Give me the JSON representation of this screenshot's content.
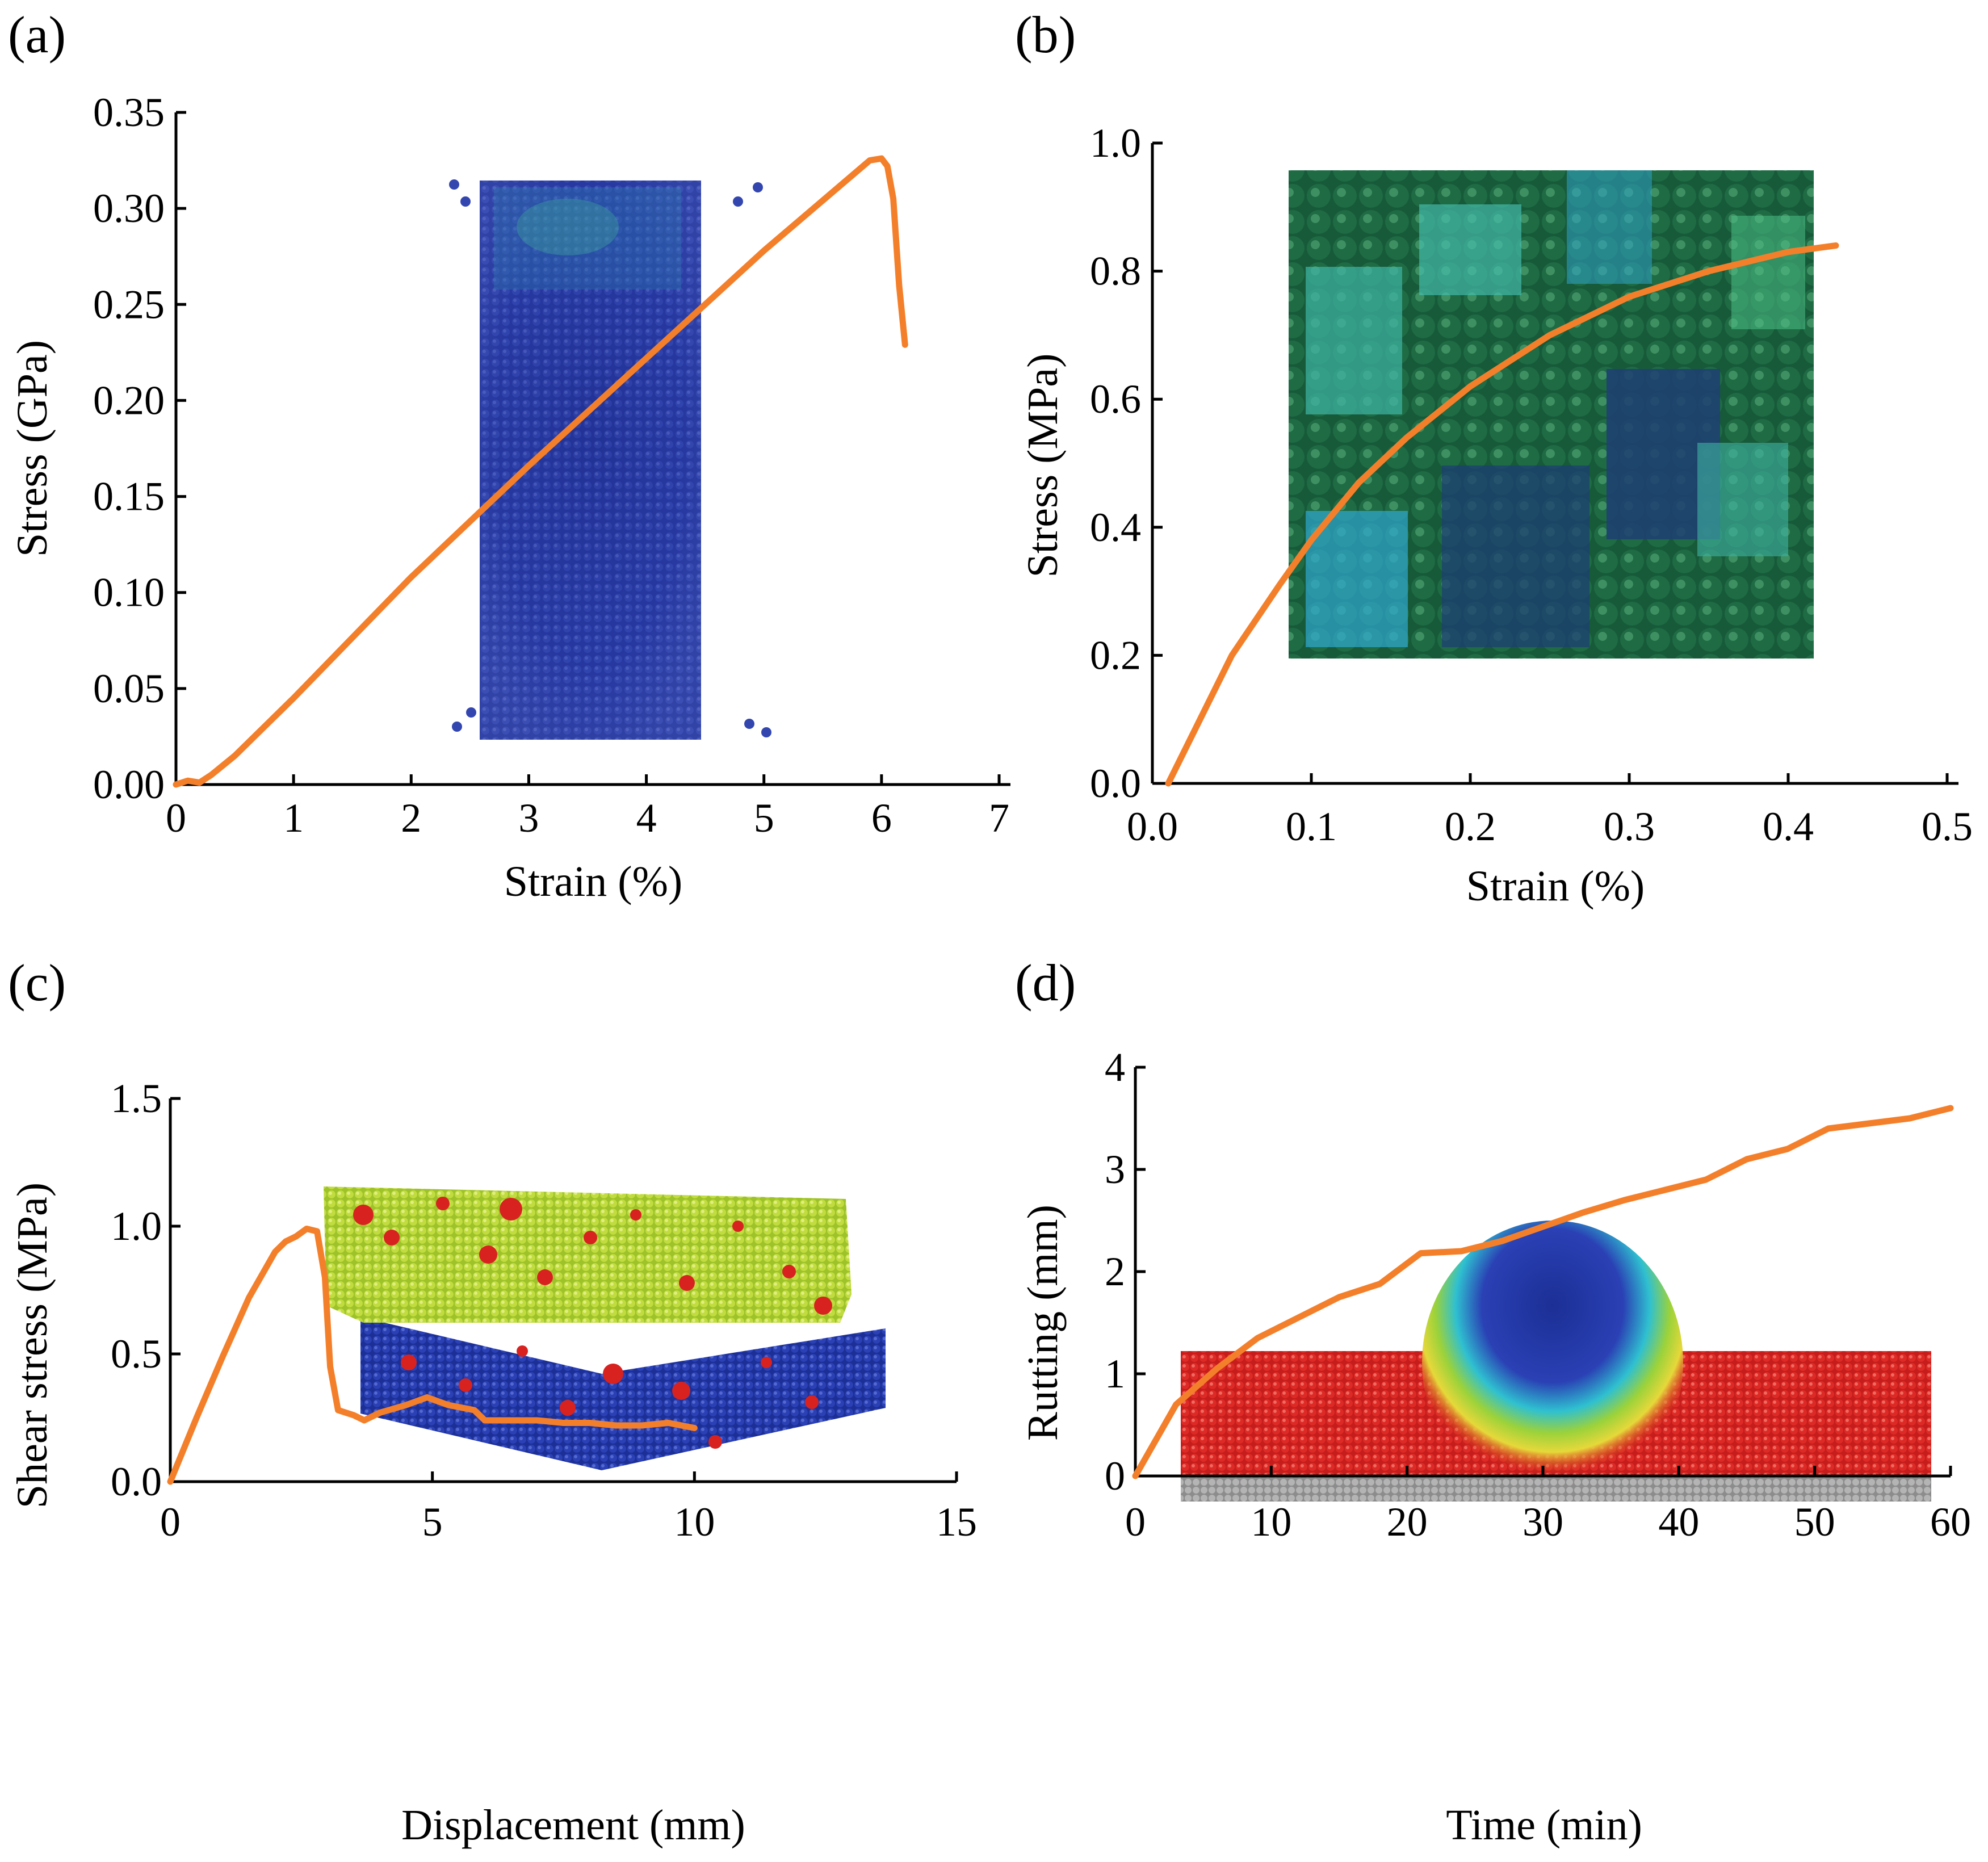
{
  "colors": {
    "curve": "#F47F2A",
    "axis": "#000000",
    "specimen_a_base": "#2B3C9E",
    "specimen_b_dark": "#1B5E35",
    "specimen_b_teal": "#3FB3A4",
    "specimen_b_blue": "#1E3F73",
    "specimen_c_top": "#B9D83A",
    "specimen_c_bottom": "#2238A8",
    "specimen_c_damage": "#D8221F",
    "specimen_d_red": "#D8221F",
    "specimen_d_base": "#A0A0A0"
  },
  "chart_data": [
    {
      "panel": "(a)",
      "type": "line",
      "title": "",
      "xlabel": "Strain (%)",
      "ylabel": "Stress (GPa)",
      "xlim": [
        0,
        7
      ],
      "ylim": [
        0,
        0.35
      ],
      "x_ticks": [
        "0",
        "1",
        "2",
        "3",
        "4",
        "5",
        "6",
        "7"
      ],
      "y_ticks": [
        "0.00",
        "0.05",
        "0.10",
        "0.15",
        "0.20",
        "0.25",
        "0.30",
        "0.35"
      ],
      "x_tick_values": [
        0,
        1,
        2,
        3,
        4,
        5,
        6,
        7
      ],
      "y_tick_values": [
        0,
        0.05,
        0.1,
        0.15,
        0.2,
        0.25,
        0.3,
        0.35
      ],
      "inset": "uniaxial tensile specimen (particle model)",
      "series": [
        {
          "name": "stress-strain",
          "x": [
            0,
            0.1,
            0.2,
            0.3,
            0.5,
            1,
            2,
            3,
            4,
            5,
            5.9,
            6.0,
            6.05,
            6.1,
            6.15,
            6.2
          ],
          "y": [
            0,
            0.002,
            0.001,
            0.005,
            0.015,
            0.045,
            0.108,
            0.166,
            0.222,
            0.278,
            0.325,
            0.326,
            0.322,
            0.305,
            0.26,
            0.229
          ]
        }
      ]
    },
    {
      "panel": "(b)",
      "type": "line",
      "title": "",
      "xlabel": "Strain (%)",
      "ylabel": "Stress (MPa)",
      "xlim": [
        0,
        0.5
      ],
      "ylim": [
        0,
        1.0
      ],
      "x_ticks": [
        "0.0",
        "0.1",
        "0.2",
        "0.3",
        "0.4",
        "0.5"
      ],
      "y_ticks": [
        "0.0",
        "0.2",
        "0.4",
        "0.6",
        "0.8",
        "1.0"
      ],
      "x_tick_values": [
        0,
        0.1,
        0.2,
        0.3,
        0.4,
        0.5
      ],
      "y_tick_values": [
        0,
        0.2,
        0.4,
        0.6,
        0.8,
        1.0
      ],
      "inset": "particle assembly under compression",
      "series": [
        {
          "name": "stress-strain",
          "x": [
            0.01,
            0.03,
            0.05,
            0.08,
            0.1,
            0.13,
            0.16,
            0.2,
            0.25,
            0.3,
            0.35,
            0.4,
            0.43
          ],
          "y": [
            0,
            0.1,
            0.2,
            0.31,
            0.38,
            0.47,
            0.54,
            0.62,
            0.7,
            0.76,
            0.8,
            0.83,
            0.84
          ]
        }
      ]
    },
    {
      "panel": "(c)",
      "type": "line",
      "title": "",
      "xlabel": "Displacement (mm)",
      "ylabel": "Shear stress (MPa)",
      "xlim": [
        0,
        15
      ],
      "ylim": [
        0,
        1.5
      ],
      "x_ticks": [
        "0",
        "5",
        "10",
        "15"
      ],
      "y_ticks": [
        "0.0",
        "0.5",
        "1.0",
        "1.5"
      ],
      "x_tick_values": [
        0,
        5,
        10,
        15
      ],
      "y_tick_values": [
        0,
        0.5,
        1.0,
        1.5
      ],
      "inset": "direct shear specimen (two-layer particle model)",
      "series": [
        {
          "name": "shear stress-displacement",
          "x": [
            0,
            0.5,
            1,
            1.5,
            2,
            2.2,
            2.4,
            2.6,
            2.8,
            2.95,
            3.05,
            3.2,
            3.5,
            3.7,
            4,
            4.5,
            4.9,
            5.3,
            5.8,
            6.0,
            6.5,
            7,
            7.5,
            8,
            8.5,
            9,
            9.5,
            10
          ],
          "y": [
            0,
            0.25,
            0.49,
            0.72,
            0.9,
            0.94,
            0.96,
            0.99,
            0.98,
            0.8,
            0.45,
            0.28,
            0.26,
            0.24,
            0.27,
            0.3,
            0.33,
            0.3,
            0.28,
            0.24,
            0.24,
            0.24,
            0.23,
            0.23,
            0.22,
            0.22,
            0.23,
            0.21
          ]
        }
      ]
    },
    {
      "panel": "(d)",
      "type": "line",
      "title": "",
      "xlabel": "Time (min)",
      "ylabel": "Rutting (mm)",
      "xlim": [
        0,
        60
      ],
      "ylim": [
        0,
        4
      ],
      "x_ticks": [
        "0",
        "10",
        "20",
        "30",
        "40",
        "50",
        "60"
      ],
      "y_ticks": [
        "0",
        "1",
        "2",
        "3",
        "4"
      ],
      "x_tick_values": [
        0,
        10,
        20,
        30,
        40,
        50,
        60
      ],
      "y_tick_values": [
        0,
        1,
        2,
        3,
        4
      ],
      "inset": "wheel tracking slab (particle model)",
      "series": [
        {
          "name": "rutting-time",
          "x": [
            0,
            1.5,
            3,
            6,
            9,
            12,
            15,
            18,
            21,
            24,
            27,
            30,
            33,
            36,
            39,
            42,
            45,
            48,
            51,
            54,
            57,
            60
          ],
          "y": [
            0,
            0.35,
            0.7,
            1.05,
            1.35,
            1.55,
            1.75,
            1.88,
            2.18,
            2.2,
            2.3,
            2.44,
            2.58,
            2.7,
            2.8,
            2.9,
            3.1,
            3.2,
            3.4,
            3.45,
            3.5,
            3.6
          ]
        }
      ]
    }
  ]
}
